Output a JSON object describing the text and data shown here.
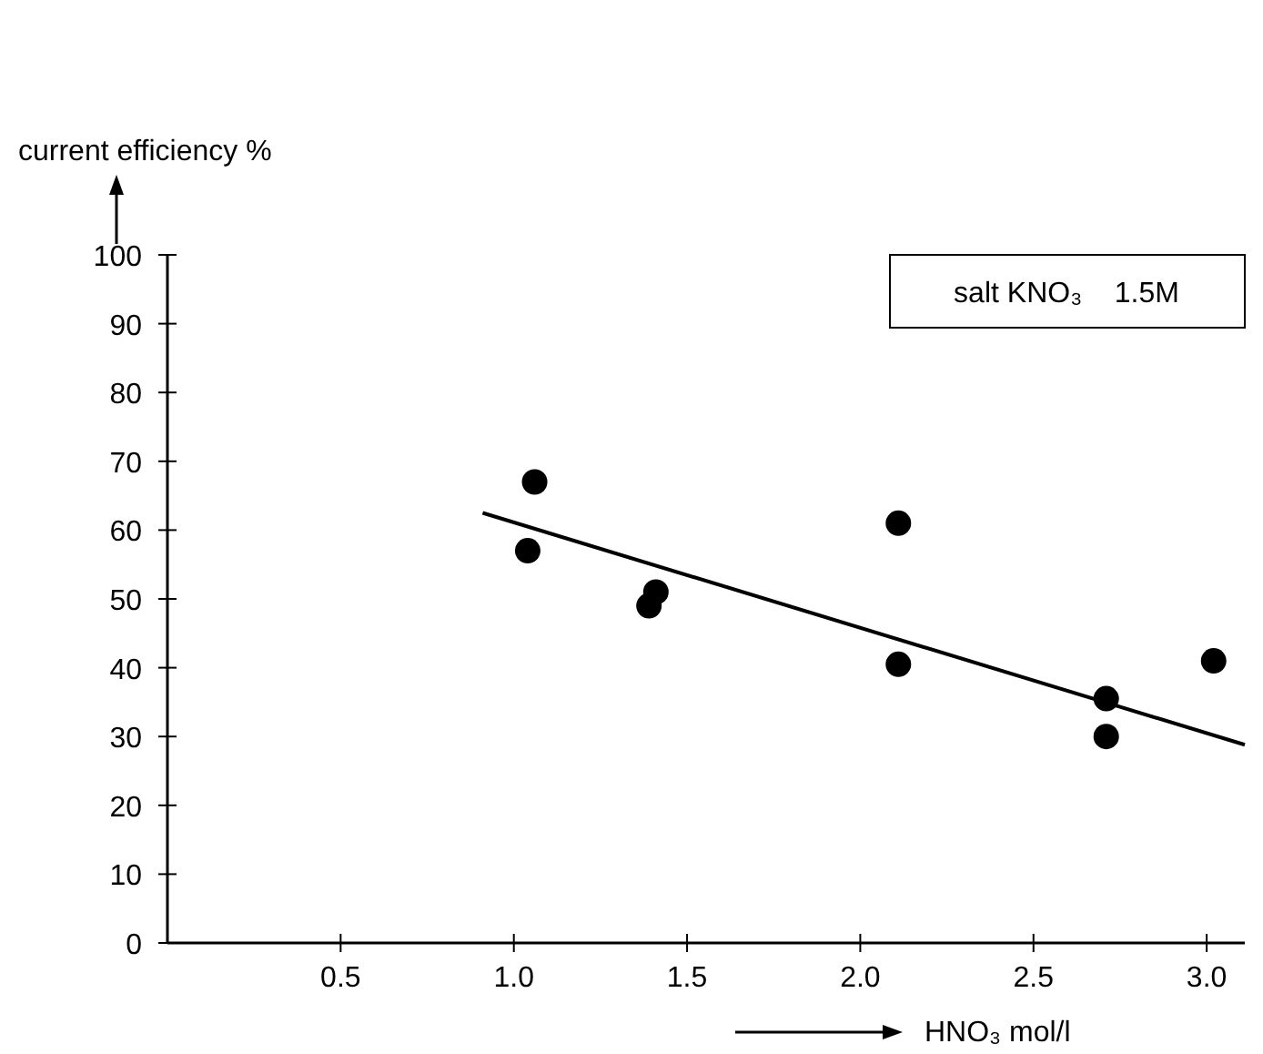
{
  "chart_data": {
    "type": "scatter",
    "xlabel": "HNO₃  mol/l",
    "ylabel": "current efficiency %",
    "annotations": [
      "salt KNO₃    1.5M"
    ],
    "xlim": [
      0,
      3.11
    ],
    "ylim": [
      0,
      100
    ],
    "xticks": [
      0.5,
      {
        "value": 1,
        "label": "1.0"
      },
      1.5,
      {
        "value": 2,
        "label": "2.0"
      },
      2.5,
      {
        "value": 3,
        "label": "3.0"
      }
    ],
    "yticks": [
      0,
      10,
      20,
      30,
      40,
      50,
      60,
      70,
      80,
      90,
      100
    ],
    "marker": "circle",
    "grid": false,
    "series": [
      {
        "color": "#000000",
        "x": [
          1.06,
          1.04,
          1.41,
          1.39,
          2.11,
          2.11,
          2.71,
          2.71,
          3.02
        ],
        "values": [
          67,
          57,
          51,
          49,
          61,
          40.5,
          35.5,
          30,
          41
        ]
      },
      {
        "type": "line",
        "marker": "none",
        "color": "#000000",
        "x": [
          0.91,
          3.11
        ],
        "values": [
          62.5,
          28.8
        ]
      }
    ]
  }
}
